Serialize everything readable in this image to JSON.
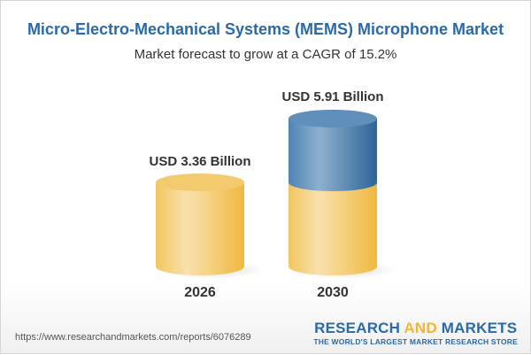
{
  "chart_data": {
    "type": "bar",
    "title": "Micro-Electro-Mechanical Systems (MEMS) Microphone Market",
    "subtitle": "Market forecast to grow at a CAGR of 15.2%",
    "categories": [
      "2026",
      "2030"
    ],
    "values": [
      3.36,
      5.91
    ],
    "data_labels": [
      "USD 3.36 Billion",
      "USD 5.91 Billion"
    ],
    "unit": "USD Billion",
    "colors": {
      "base": "#f2c25a",
      "growth": "#3f79ab"
    }
  },
  "footer": {
    "url": "https://www.researchandmarkets.com/reports/6076289",
    "logo_part1": "RESEARCH ",
    "logo_part2": "AND",
    "logo_part3": " MARKETS",
    "tagline": "THE WORLD'S LARGEST MARKET RESEARCH STORE"
  }
}
